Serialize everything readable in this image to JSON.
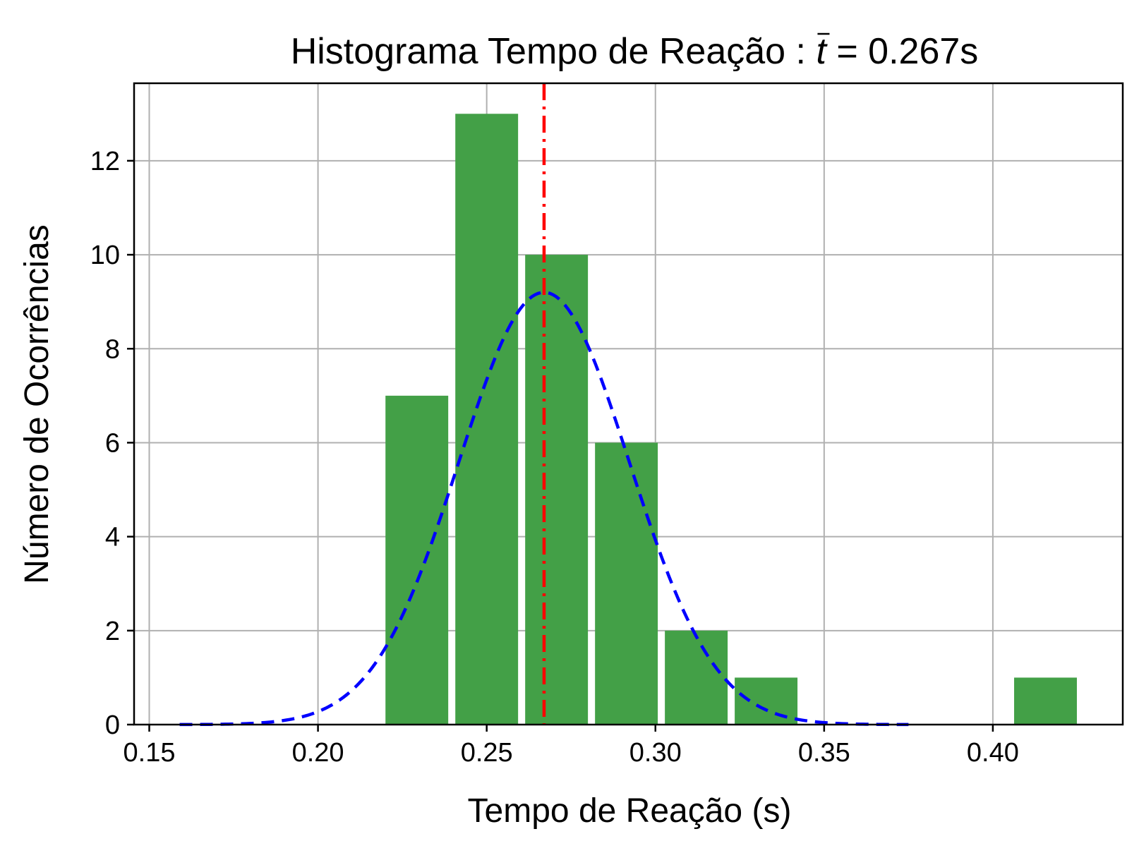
{
  "chart_data": {
    "type": "bar",
    "title_prefix": "Histograma Tempo de Reação : ",
    "title_math_symbol": "t",
    "title_math_rest": " = 0.267s",
    "xlabel": "Tempo de Reação (s)",
    "ylabel": "Número de Ocorrências",
    "xlim": [
      0.1455,
      0.4385
    ],
    "ylim": [
      0,
      13.65
    ],
    "xticks": [
      0.15,
      0.2,
      0.25,
      0.3,
      0.35,
      0.4
    ],
    "xtick_labels": [
      "0.15",
      "0.20",
      "0.25",
      "0.30",
      "0.35",
      "0.40"
    ],
    "yticks": [
      0,
      2,
      4,
      6,
      8,
      10,
      12
    ],
    "ytick_labels": [
      "0",
      "2",
      "4",
      "6",
      "8",
      "10",
      "12"
    ],
    "grid": true,
    "bars": [
      {
        "x_start": 0.22,
        "x_end": 0.2386,
        "value": 7
      },
      {
        "x_start": 0.2407,
        "x_end": 0.2593,
        "value": 13
      },
      {
        "x_start": 0.2614,
        "x_end": 0.28,
        "value": 10
      },
      {
        "x_start": 0.2821,
        "x_end": 0.3007,
        "value": 6
      },
      {
        "x_start": 0.3028,
        "x_end": 0.3214,
        "value": 2
      },
      {
        "x_start": 0.3235,
        "x_end": 0.3421,
        "value": 1
      },
      {
        "x_start": 0.3442,
        "x_end": 0.3628,
        "value": 0
      },
      {
        "x_start": 0.3649,
        "x_end": 0.3835,
        "value": 0
      },
      {
        "x_start": 0.3856,
        "x_end": 0.4042,
        "value": 0
      },
      {
        "x_start": 0.4063,
        "x_end": 0.4249,
        "value": 1
      }
    ],
    "mean_line": {
      "x": 0.267,
      "color": "#ff0000",
      "style": "dash-dot"
    },
    "normal_curve": {
      "mean": 0.267,
      "peak": 9.2,
      "sigma": 0.0253,
      "x_start": 0.159,
      "x_end": 0.375,
      "color": "#0000ff",
      "style": "dashed"
    },
    "bar_color": "#43a047"
  }
}
